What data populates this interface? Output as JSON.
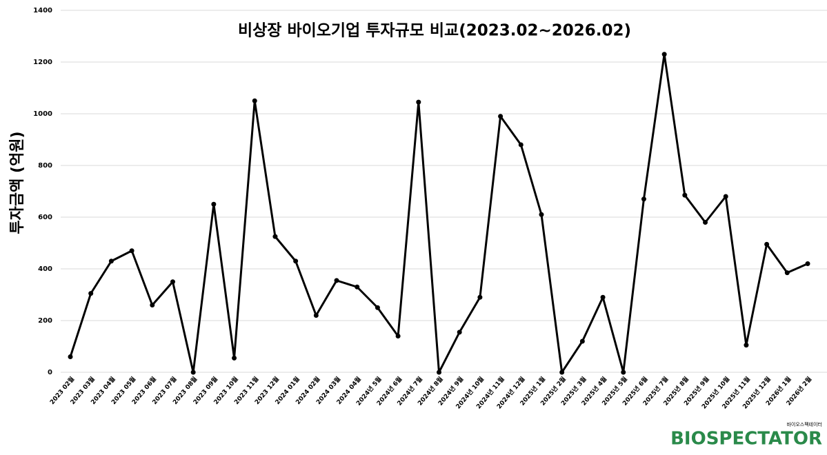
{
  "chart_data": {
    "type": "line",
    "title": "비상장 바이오기업 투자규모 비교(2023.02~2026.02)",
    "y_label": "투자금액 (억원)",
    "categories": [
      "2023 02월",
      "2023 03월",
      "2023 04월",
      "2023 05월",
      "2023 06월",
      "2023 07월",
      "2023 08월",
      "2023 09월",
      "2023 10월",
      "2023 11월",
      "2023 12월",
      "2024 01월",
      "2024 02월",
      "2024 03월",
      "2024 04월",
      "2024년 5월",
      "2024년 6월",
      "2024년 7월",
      "2024년 8월",
      "2024년 9월",
      "2024년 10월",
      "2024년 11월",
      "2024년 12월",
      "2025년 1월",
      "2025년 2월",
      "2025년 3월",
      "2025년 4월",
      "2025년 5월",
      "2025년 6월",
      "2025년 7월",
      "2025년 8월",
      "2025년 9월",
      "2025년 10월",
      "2025년 11월",
      "2025년 12월",
      "2026년 1월",
      "2026년 2월"
    ],
    "values": [
      60,
      305,
      430,
      470,
      260,
      350,
      0,
      650,
      55,
      1050,
      525,
      430,
      220,
      355,
      330,
      250,
      140,
      1045,
      0,
      155,
      290,
      990,
      880,
      610,
      0,
      120,
      290,
      0,
      670,
      1230,
      685,
      580,
      680,
      105,
      495,
      385,
      420
    ],
    "color": "#000000",
    "ylim": [
      0,
      1400
    ],
    "yticks": [
      0,
      200,
      400,
      600,
      800,
      1000,
      1200,
      1400
    ],
    "grid": true
  },
  "logo": {
    "name": "BIOSPECTATOR",
    "tagline": "바이오스펙테이터"
  }
}
